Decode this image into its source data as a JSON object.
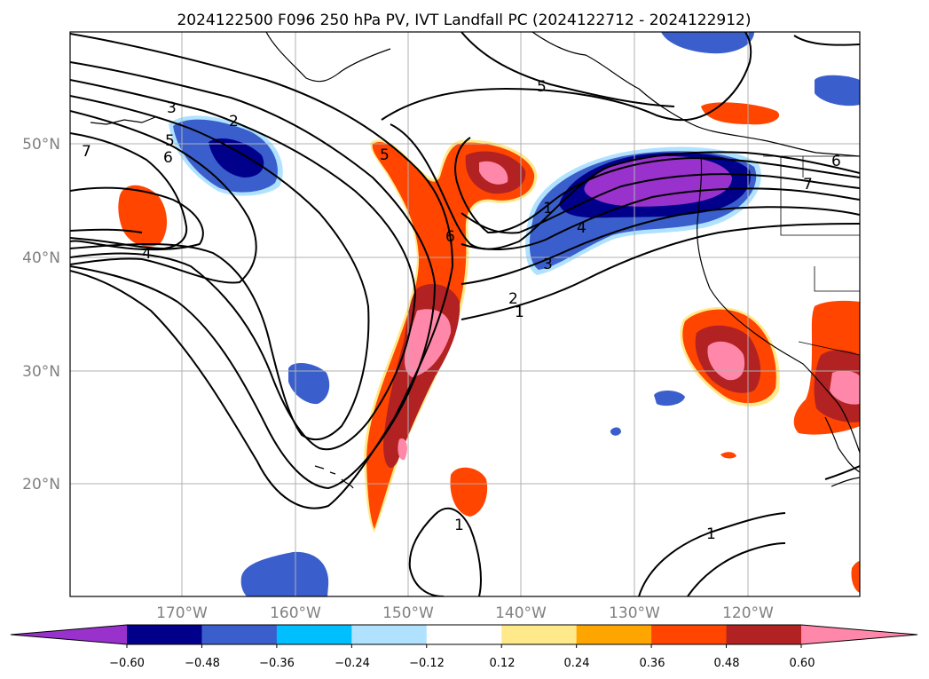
{
  "title": "2024122500 F096 250 hPa PV, IVT Landfall PC (2024122712 - 2024122912)",
  "lat_labels": [
    "50°N",
    "40°N",
    "30°N",
    "20°N"
  ],
  "lon_labels": [
    "170°W",
    "160°W",
    "150°W",
    "140°W",
    "130°W",
    "120°W"
  ],
  "colorbar": {
    "extend": "both",
    "ticks": [
      "−0.60",
      "−0.48",
      "−0.36",
      "−0.24",
      "−0.12",
      "0.12",
      "0.24",
      "0.36",
      "0.48",
      "0.60"
    ],
    "colors": [
      "#9932cc",
      "#00008b",
      "#3a5fcd",
      "#00bfff",
      "#b0e2ff",
      "#ffffff",
      "#ffe98a",
      "#ffa500",
      "#ff4500",
      "#b22222",
      "#ff88aa"
    ]
  },
  "contour_labels": [
    "3",
    "2",
    "5",
    "6",
    "7",
    "4",
    "5",
    "6",
    "5",
    "4",
    "3",
    "2",
    "1",
    "1",
    "6",
    "7",
    "1",
    "1"
  ],
  "map": {
    "region": "North Pacific",
    "lat_range": [
      10,
      60
    ],
    "lon_range": [
      -180,
      -110
    ],
    "grid": true
  }
}
